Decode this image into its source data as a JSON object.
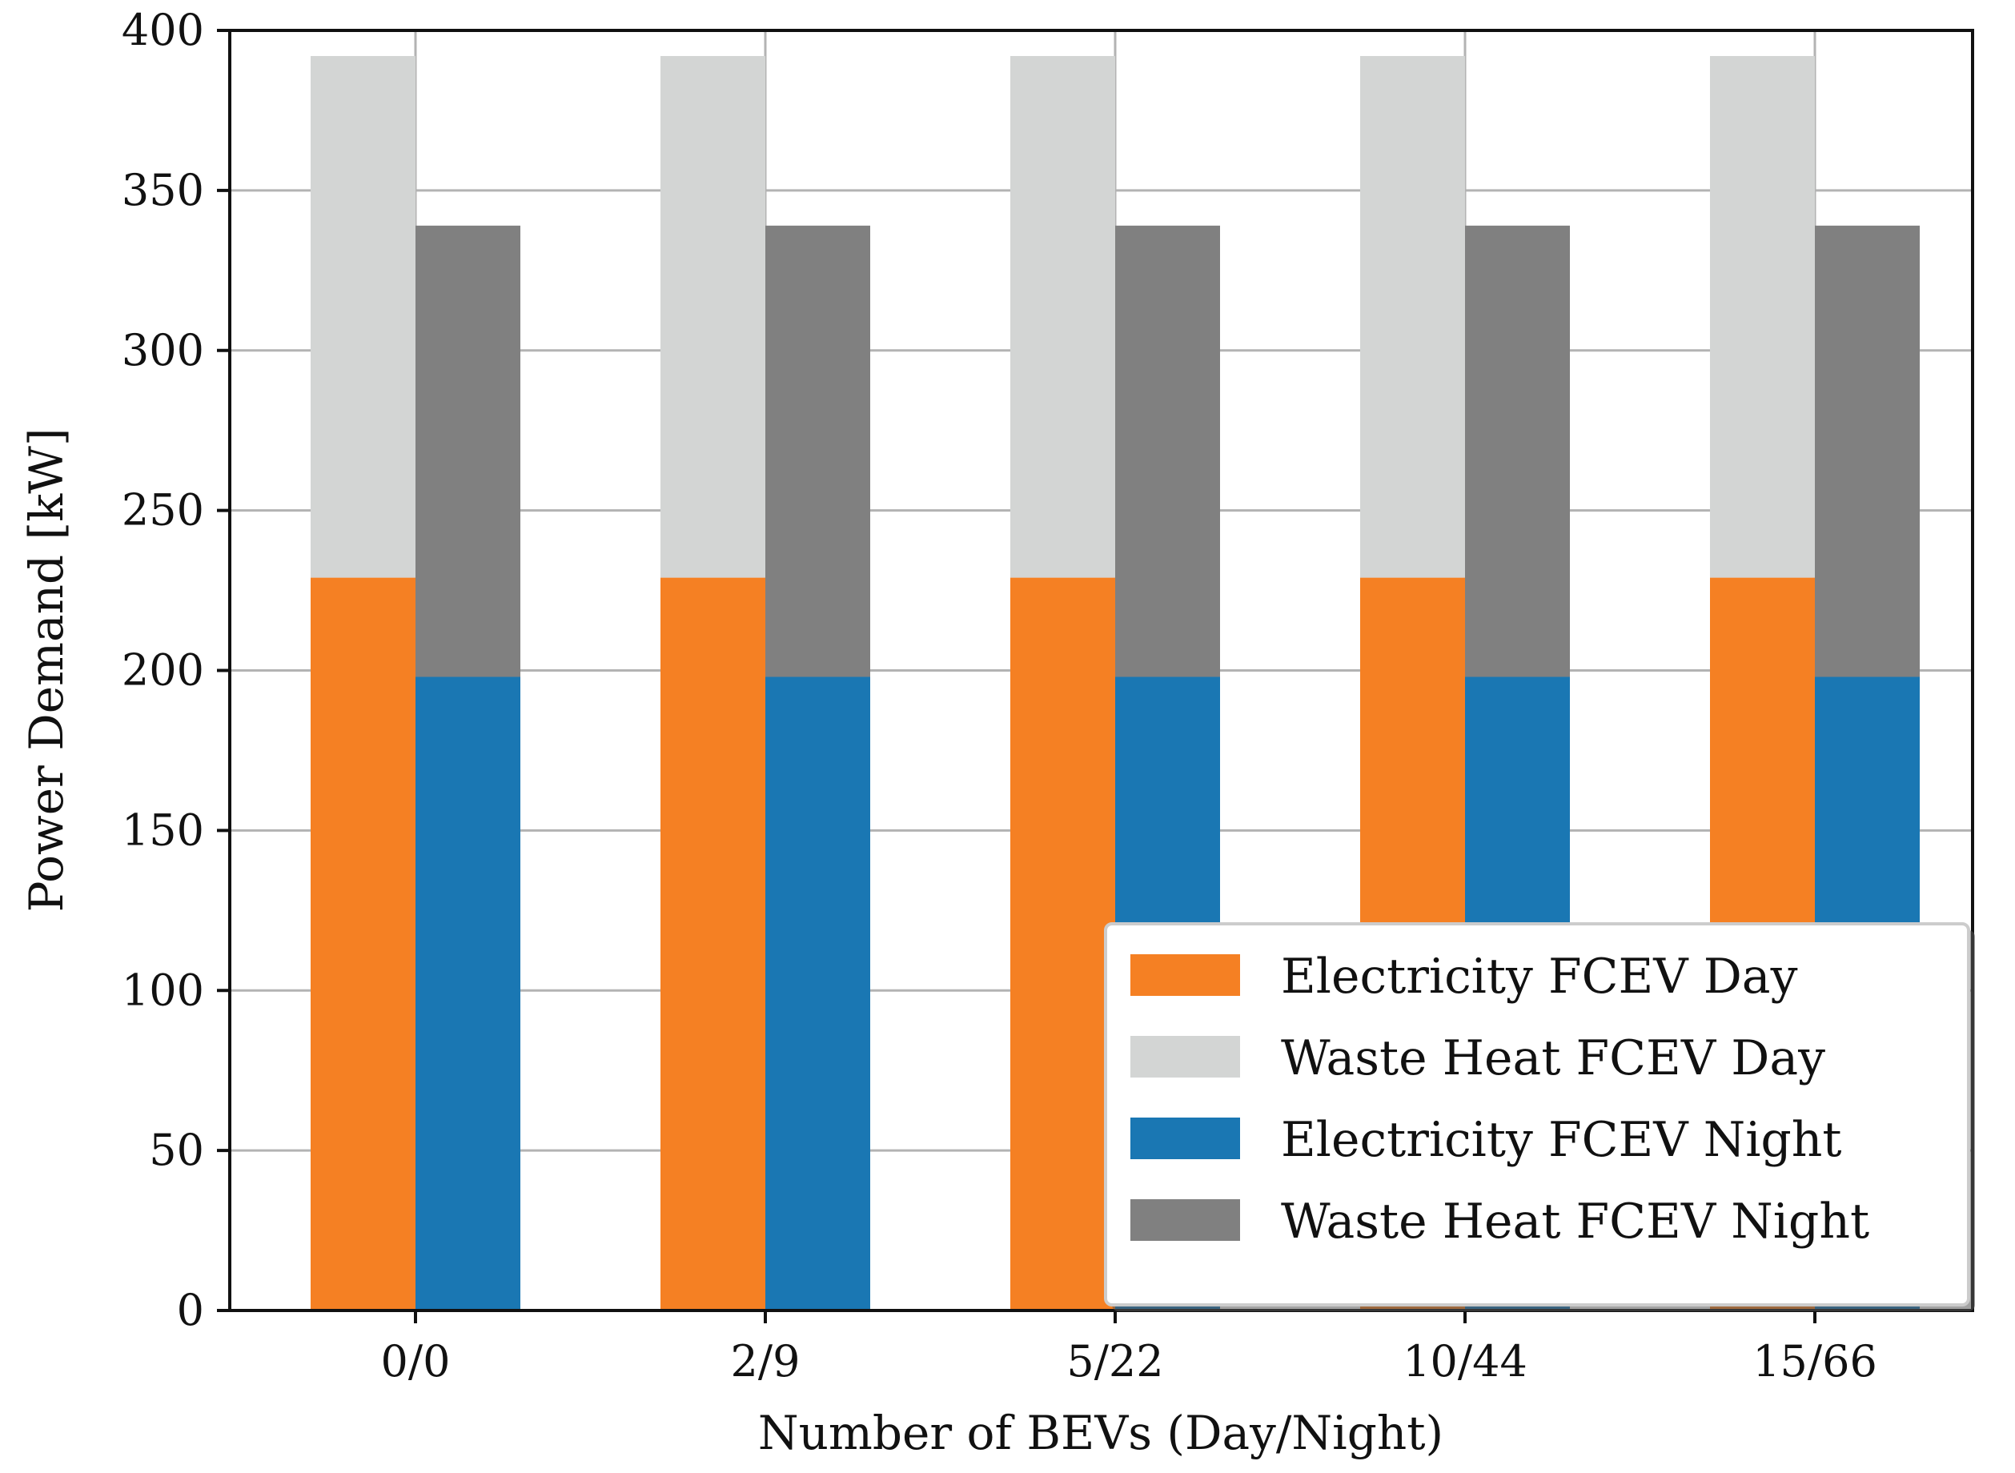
{
  "chart_data": {
    "type": "bar",
    "subtype": "grouped-stacked",
    "title": "",
    "xlabel": "Number of BEVs (Day/Night)",
    "ylabel": "Power Demand [kW]",
    "categories": [
      "0/0",
      "2/9",
      "5/22",
      "10/44",
      "15/66"
    ],
    "ylim": [
      0,
      400
    ],
    "yticks": [
      0,
      50,
      100,
      150,
      200,
      250,
      300,
      350,
      400
    ],
    "grid": true,
    "legend_position": "lower-right",
    "stacks": [
      {
        "name": "Day",
        "segments": [
          {
            "name": "Electricity FCEV Day",
            "color": "#f58023",
            "values": [
              229,
              229,
              229,
              229,
              229
            ]
          },
          {
            "name": "Waste Heat FCEV Day",
            "color": "#d3d5d4",
            "values": [
              163,
              163,
              163,
              163,
              163
            ]
          }
        ]
      },
      {
        "name": "Night",
        "segments": [
          {
            "name": "Electricity FCEV Night",
            "color": "#1a77b3",
            "values": [
              198,
              198,
              198,
              198,
              198
            ]
          },
          {
            "name": "Waste Heat FCEV Night",
            "color": "#808080",
            "values": [
              141,
              141,
              141,
              141,
              141
            ]
          }
        ]
      }
    ],
    "legend": [
      {
        "label": "Electricity FCEV Day",
        "color": "#f58023"
      },
      {
        "label": "Waste Heat FCEV Day",
        "color": "#d3d5d4"
      },
      {
        "label": "Electricity FCEV Night",
        "color": "#1a77b3"
      },
      {
        "label": "Waste Heat FCEV Night",
        "color": "#808080"
      }
    ]
  }
}
